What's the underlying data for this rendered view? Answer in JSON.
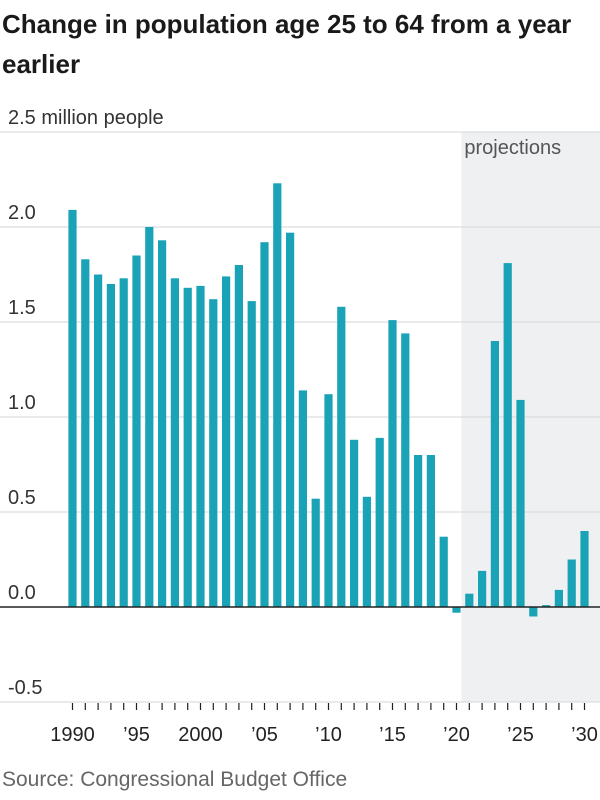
{
  "title": "Change in population age 25 to 64 from a year earlier",
  "source": "Source: Congressional Budget Office",
  "chart_data": {
    "type": "bar",
    "title": "Change in population age 25 to 64 from a year earlier",
    "ylabel": "2.5 million people",
    "ylim": [
      -0.5,
      2.5
    ],
    "y_ticks": [
      {
        "value": 2.5,
        "label": "2.5 million people"
      },
      {
        "value": 2.0,
        "label": "2.0"
      },
      {
        "value": 1.5,
        "label": "1.5"
      },
      {
        "value": 1.0,
        "label": "1.0"
      },
      {
        "value": 0.5,
        "label": "0.5"
      },
      {
        "value": 0.0,
        "label": "0.0"
      },
      {
        "value": -0.5,
        "label": "-0.5"
      }
    ],
    "x_ticks": [
      {
        "year": 1990,
        "label": "1990"
      },
      {
        "year": 1995,
        "label": "’95"
      },
      {
        "year": 2000,
        "label": "2000"
      },
      {
        "year": 2005,
        "label": "’05"
      },
      {
        "year": 2010,
        "label": "’10"
      },
      {
        "year": 2015,
        "label": "’15"
      },
      {
        "year": 2020,
        "label": "’20"
      },
      {
        "year": 2025,
        "label": "’25"
      },
      {
        "year": 2030,
        "label": "’30"
      }
    ],
    "projection_start": 2021,
    "projection_label": "projections",
    "grid": true,
    "bar_color": "#1aa3b7",
    "shade_color": "#eef0f2",
    "categories": [
      1990,
      1991,
      1992,
      1993,
      1994,
      1995,
      1996,
      1997,
      1998,
      1999,
      2000,
      2001,
      2002,
      2003,
      2004,
      2005,
      2006,
      2007,
      2008,
      2009,
      2010,
      2011,
      2012,
      2013,
      2014,
      2015,
      2016,
      2017,
      2018,
      2019,
      2020,
      2021,
      2022,
      2023,
      2024,
      2025,
      2026,
      2027,
      2028,
      2029,
      2030
    ],
    "values": [
      2.09,
      1.83,
      1.75,
      1.7,
      1.73,
      1.85,
      2.0,
      1.93,
      1.73,
      1.68,
      1.69,
      1.62,
      1.74,
      1.8,
      1.61,
      1.92,
      2.23,
      1.97,
      1.14,
      0.57,
      1.12,
      1.58,
      0.88,
      0.58,
      0.89,
      1.51,
      1.44,
      0.8,
      0.8,
      0.37,
      -0.03,
      0.07,
      0.19,
      1.4,
      1.81,
      1.09,
      -0.05,
      0.01,
      0.09,
      0.25,
      0.4
    ]
  }
}
